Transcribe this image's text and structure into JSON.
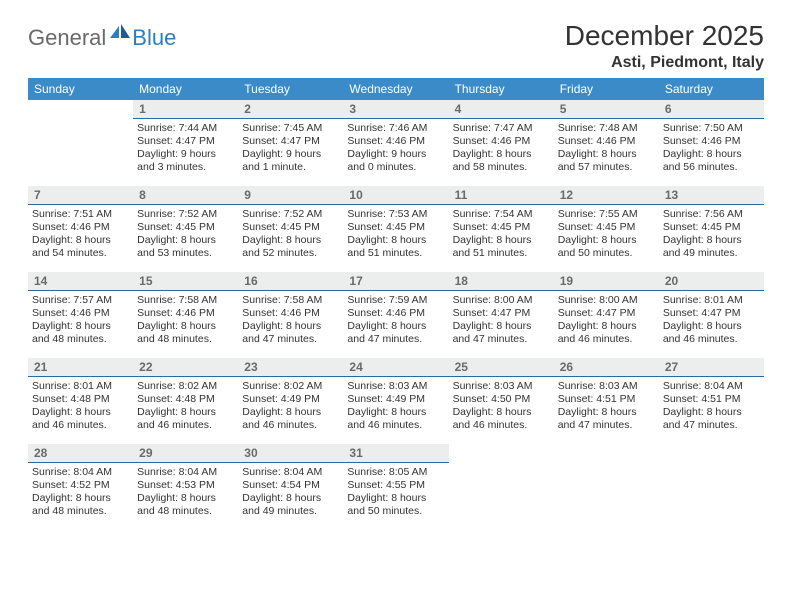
{
  "logo": {
    "text1": "General",
    "text2": "Blue"
  },
  "title": "December 2025",
  "location": "Asti, Piedmont, Italy",
  "colors": {
    "header_bg": "#3b8bc8",
    "header_text": "#ffffff",
    "daynum_bg": "#eceded",
    "daynum_text": "#6a6a6a",
    "daynum_border": "#2a6aa0",
    "body_text": "#333333",
    "logo_gray": "#6a6a6a",
    "logo_blue": "#2a7ec4"
  },
  "weekdays": [
    "Sunday",
    "Monday",
    "Tuesday",
    "Wednesday",
    "Thursday",
    "Friday",
    "Saturday"
  ],
  "weeks": [
    [
      null,
      {
        "n": "1",
        "sr": "Sunrise: 7:44 AM",
        "ss": "Sunset: 4:47 PM",
        "d1": "Daylight: 9 hours",
        "d2": "and 3 minutes."
      },
      {
        "n": "2",
        "sr": "Sunrise: 7:45 AM",
        "ss": "Sunset: 4:47 PM",
        "d1": "Daylight: 9 hours",
        "d2": "and 1 minute."
      },
      {
        "n": "3",
        "sr": "Sunrise: 7:46 AM",
        "ss": "Sunset: 4:46 PM",
        "d1": "Daylight: 9 hours",
        "d2": "and 0 minutes."
      },
      {
        "n": "4",
        "sr": "Sunrise: 7:47 AM",
        "ss": "Sunset: 4:46 PM",
        "d1": "Daylight: 8 hours",
        "d2": "and 58 minutes."
      },
      {
        "n": "5",
        "sr": "Sunrise: 7:48 AM",
        "ss": "Sunset: 4:46 PM",
        "d1": "Daylight: 8 hours",
        "d2": "and 57 minutes."
      },
      {
        "n": "6",
        "sr": "Sunrise: 7:50 AM",
        "ss": "Sunset: 4:46 PM",
        "d1": "Daylight: 8 hours",
        "d2": "and 56 minutes."
      }
    ],
    [
      {
        "n": "7",
        "sr": "Sunrise: 7:51 AM",
        "ss": "Sunset: 4:46 PM",
        "d1": "Daylight: 8 hours",
        "d2": "and 54 minutes."
      },
      {
        "n": "8",
        "sr": "Sunrise: 7:52 AM",
        "ss": "Sunset: 4:45 PM",
        "d1": "Daylight: 8 hours",
        "d2": "and 53 minutes."
      },
      {
        "n": "9",
        "sr": "Sunrise: 7:52 AM",
        "ss": "Sunset: 4:45 PM",
        "d1": "Daylight: 8 hours",
        "d2": "and 52 minutes."
      },
      {
        "n": "10",
        "sr": "Sunrise: 7:53 AM",
        "ss": "Sunset: 4:45 PM",
        "d1": "Daylight: 8 hours",
        "d2": "and 51 minutes."
      },
      {
        "n": "11",
        "sr": "Sunrise: 7:54 AM",
        "ss": "Sunset: 4:45 PM",
        "d1": "Daylight: 8 hours",
        "d2": "and 51 minutes."
      },
      {
        "n": "12",
        "sr": "Sunrise: 7:55 AM",
        "ss": "Sunset: 4:45 PM",
        "d1": "Daylight: 8 hours",
        "d2": "and 50 minutes."
      },
      {
        "n": "13",
        "sr": "Sunrise: 7:56 AM",
        "ss": "Sunset: 4:45 PM",
        "d1": "Daylight: 8 hours",
        "d2": "and 49 minutes."
      }
    ],
    [
      {
        "n": "14",
        "sr": "Sunrise: 7:57 AM",
        "ss": "Sunset: 4:46 PM",
        "d1": "Daylight: 8 hours",
        "d2": "and 48 minutes."
      },
      {
        "n": "15",
        "sr": "Sunrise: 7:58 AM",
        "ss": "Sunset: 4:46 PM",
        "d1": "Daylight: 8 hours",
        "d2": "and 48 minutes."
      },
      {
        "n": "16",
        "sr": "Sunrise: 7:58 AM",
        "ss": "Sunset: 4:46 PM",
        "d1": "Daylight: 8 hours",
        "d2": "and 47 minutes."
      },
      {
        "n": "17",
        "sr": "Sunrise: 7:59 AM",
        "ss": "Sunset: 4:46 PM",
        "d1": "Daylight: 8 hours",
        "d2": "and 47 minutes."
      },
      {
        "n": "18",
        "sr": "Sunrise: 8:00 AM",
        "ss": "Sunset: 4:47 PM",
        "d1": "Daylight: 8 hours",
        "d2": "and 47 minutes."
      },
      {
        "n": "19",
        "sr": "Sunrise: 8:00 AM",
        "ss": "Sunset: 4:47 PM",
        "d1": "Daylight: 8 hours",
        "d2": "and 46 minutes."
      },
      {
        "n": "20",
        "sr": "Sunrise: 8:01 AM",
        "ss": "Sunset: 4:47 PM",
        "d1": "Daylight: 8 hours",
        "d2": "and 46 minutes."
      }
    ],
    [
      {
        "n": "21",
        "sr": "Sunrise: 8:01 AM",
        "ss": "Sunset: 4:48 PM",
        "d1": "Daylight: 8 hours",
        "d2": "and 46 minutes."
      },
      {
        "n": "22",
        "sr": "Sunrise: 8:02 AM",
        "ss": "Sunset: 4:48 PM",
        "d1": "Daylight: 8 hours",
        "d2": "and 46 minutes."
      },
      {
        "n": "23",
        "sr": "Sunrise: 8:02 AM",
        "ss": "Sunset: 4:49 PM",
        "d1": "Daylight: 8 hours",
        "d2": "and 46 minutes."
      },
      {
        "n": "24",
        "sr": "Sunrise: 8:03 AM",
        "ss": "Sunset: 4:49 PM",
        "d1": "Daylight: 8 hours",
        "d2": "and 46 minutes."
      },
      {
        "n": "25",
        "sr": "Sunrise: 8:03 AM",
        "ss": "Sunset: 4:50 PM",
        "d1": "Daylight: 8 hours",
        "d2": "and 46 minutes."
      },
      {
        "n": "26",
        "sr": "Sunrise: 8:03 AM",
        "ss": "Sunset: 4:51 PM",
        "d1": "Daylight: 8 hours",
        "d2": "and 47 minutes."
      },
      {
        "n": "27",
        "sr": "Sunrise: 8:04 AM",
        "ss": "Sunset: 4:51 PM",
        "d1": "Daylight: 8 hours",
        "d2": "and 47 minutes."
      }
    ],
    [
      {
        "n": "28",
        "sr": "Sunrise: 8:04 AM",
        "ss": "Sunset: 4:52 PM",
        "d1": "Daylight: 8 hours",
        "d2": "and 48 minutes."
      },
      {
        "n": "29",
        "sr": "Sunrise: 8:04 AM",
        "ss": "Sunset: 4:53 PM",
        "d1": "Daylight: 8 hours",
        "d2": "and 48 minutes."
      },
      {
        "n": "30",
        "sr": "Sunrise: 8:04 AM",
        "ss": "Sunset: 4:54 PM",
        "d1": "Daylight: 8 hours",
        "d2": "and 49 minutes."
      },
      {
        "n": "31",
        "sr": "Sunrise: 8:05 AM",
        "ss": "Sunset: 4:55 PM",
        "d1": "Daylight: 8 hours",
        "d2": "and 50 minutes."
      },
      null,
      null,
      null
    ]
  ]
}
